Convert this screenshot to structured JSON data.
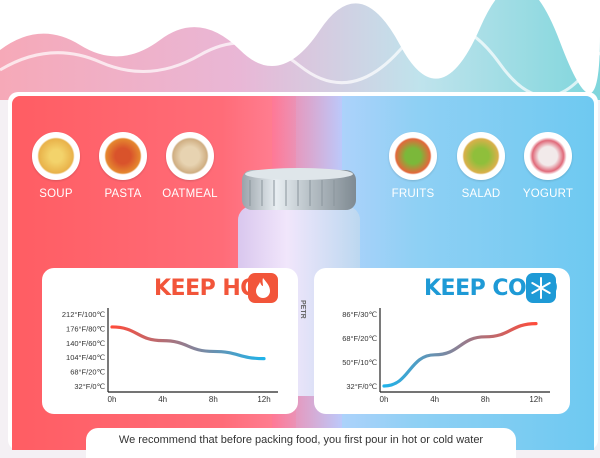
{
  "hot_foods": [
    {
      "label": "SOUP",
      "icon": "soup-bowl-icon"
    },
    {
      "label": "PASTA",
      "icon": "pasta-bowl-icon"
    },
    {
      "label": "OATMEAL",
      "icon": "oatmeal-bowl-icon"
    }
  ],
  "cold_foods": [
    {
      "label": "FRUITS",
      "icon": "fruit-bowl-icon"
    },
    {
      "label": "SALAD",
      "icon": "salad-bowl-icon"
    },
    {
      "label": "YOGURT",
      "icon": "yogurt-bowl-icon"
    }
  ],
  "jar_brand": "PETR",
  "chart_data": [
    {
      "type": "line",
      "title": "KEEP HOT",
      "x": [
        "0h",
        "4h",
        "8h",
        "12h"
      ],
      "yticks": [
        "212°F/100℃",
        "176°F/80℃",
        "140°F/60℃",
        "104°F/40℃",
        "68°F/20℃",
        "32°F/0℃"
      ],
      "ylim": [
        0,
        100
      ],
      "series": [
        {
          "values": [
            82,
            63,
            48,
            38
          ]
        }
      ],
      "colors": {
        "start": "#ff4b3a",
        "end": "#1fb3ea"
      }
    },
    {
      "type": "line",
      "title": "KEEP COLD",
      "x": [
        "0h",
        "4h",
        "8h",
        "12h"
      ],
      "yticks": [
        "86°F/30℃",
        "68°F/20℃",
        "50°F/10℃",
        "32°F/0℃"
      ],
      "ylim": [
        0,
        30
      ],
      "series": [
        {
          "values": [
            0,
            13,
            20.5,
            26
          ]
        }
      ],
      "colors": {
        "start": "#1fb3ea",
        "end": "#ff4b3a"
      }
    }
  ],
  "note": "We recommend that before packing food, you first pour in hot or cold water",
  "colors": {
    "hot": "#f2553a",
    "cold": "#1e9ad6"
  }
}
